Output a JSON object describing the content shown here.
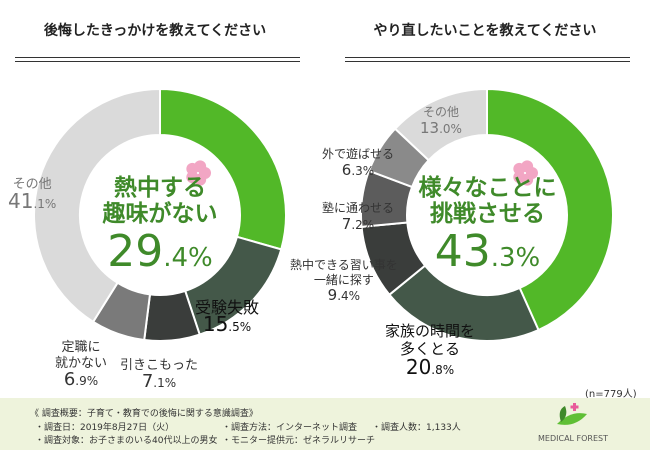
{
  "chart_data": [
    {
      "type": "pie",
      "title": "後悔したきっかけを教えてください",
      "categories": [
        "熱中する趣味がない",
        "受験失敗",
        "引きこもった",
        "定職に就かない",
        "その他"
      ],
      "values": [
        29.4,
        15.5,
        7.1,
        6.9,
        41.1
      ],
      "colors": [
        "#52b828",
        "#445849",
        "#3a3d3b",
        "#7a7a7a",
        "#dadada"
      ]
    },
    {
      "type": "pie",
      "title": "やり直したいことを教えてください",
      "categories": [
        "様々なことに挑戦させる",
        "家族の時間を多くとる",
        "熱中できる習い事を一緒に探す",
        "塾に通わせる",
        "外で遊ばせる",
        "その他"
      ],
      "values": [
        43.3,
        20.8,
        9.4,
        7.2,
        6.3,
        13.0
      ],
      "colors": [
        "#52b828",
        "#445849",
        "#3a3d3b",
        "#5c5c5c",
        "#8a8a8a",
        "#dadada"
      ],
      "note": "(n=779人)"
    }
  ],
  "left": {
    "center1": "熱中する",
    "center2": "趣味がない",
    "center_int": "29",
    "center_dec": ".4%",
    "labels": [
      {
        "t": "受験失敗",
        "i": "15",
        ".d": "",
        "d": ".5%"
      },
      {
        "t": "引きこもった",
        "i": "7",
        "d": ".1%"
      },
      {
        "t1": "定職に",
        "t2": "就かない",
        "i": "6",
        "d": ".9%"
      },
      {
        "t": "その他",
        "i": "41",
        "d": ".1%"
      }
    ]
  },
  "right": {
    "center1": "様々なことに",
    "center2": "挑戦させる",
    "center_int": "43",
    "center_dec": ".3%",
    "labels": [
      {
        "t1": "家族の時間を",
        "t2": "多くとる",
        "i": "20",
        "d": ".8%"
      },
      {
        "t1": "熱中できる習い事を",
        "t2": "一緒に探す",
        "i": "9",
        "d": ".4%"
      },
      {
        "t": "塾に通わせる",
        "i": "7",
        "d": ".2%"
      },
      {
        "t": "外で遊ばせる",
        "i": "6",
        "d": ".3%"
      },
      {
        "t": "その他",
        "i": "13",
        "d": ".0%"
      }
    ]
  },
  "footer": {
    "heading": "《 調査概要：子育て・教育での後悔に関する意識調査》",
    "date": "・調査日：2019年8月27日（火）",
    "method": "・調査方法：インターネット調査",
    "count": "・調査人数：1,133人",
    "target": "・調査対象：お子さまのいる40代以上の男女",
    "provider": "・モニター提供元：ゼネラルリサーチ",
    "logo": "MEDICAL FOREST"
  }
}
